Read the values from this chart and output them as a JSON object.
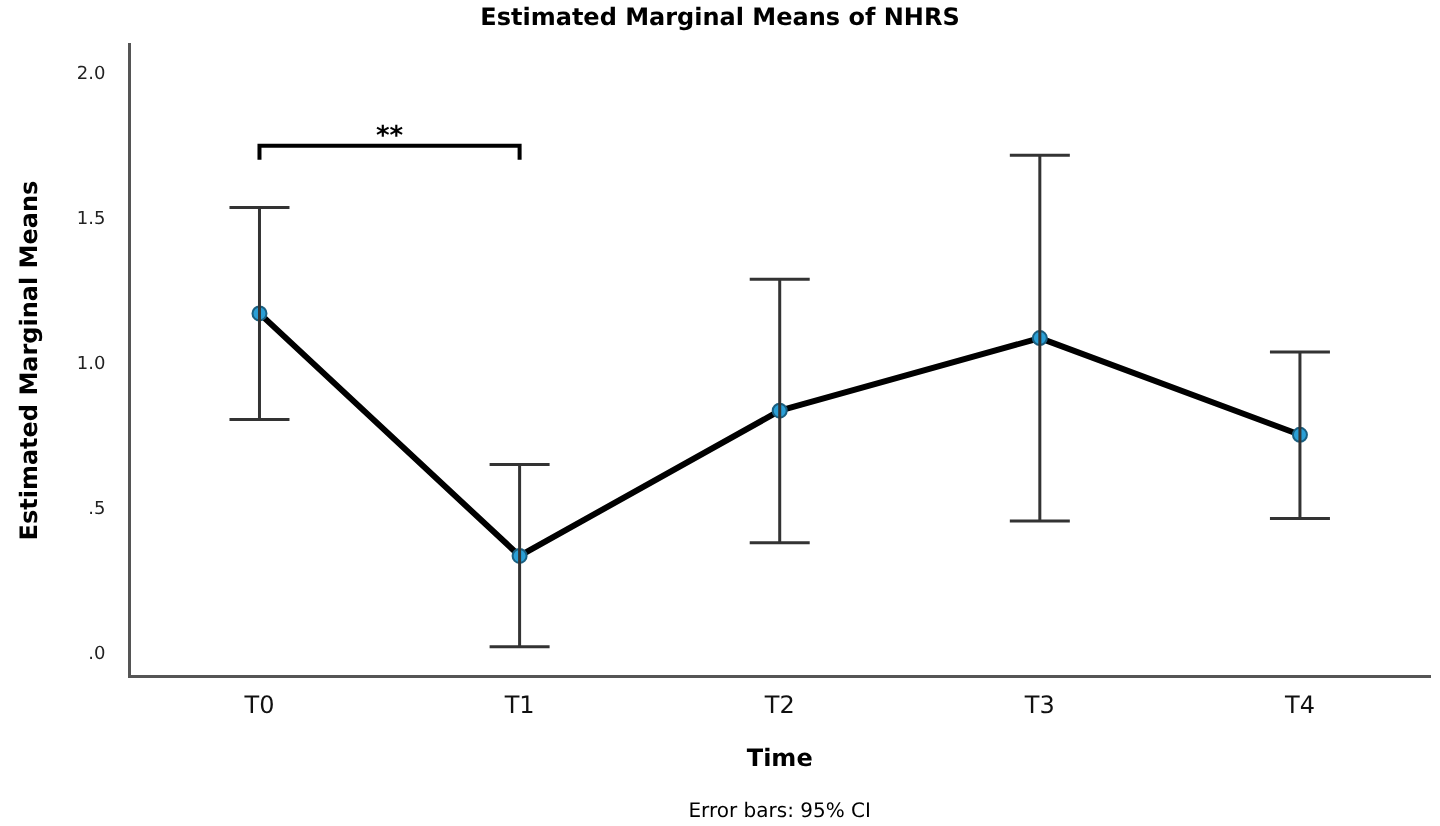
{
  "chart_data": {
    "type": "line",
    "title": "Estimated Marginal Means of NHRS",
    "xlabel": "Time",
    "ylabel": "Estimated Marginal Means",
    "categories": [
      "T0",
      "T1",
      "T2",
      "T3",
      "T4"
    ],
    "series": [
      {
        "color": "#000000",
        "values": [
          1.175,
          0.34,
          0.84,
          1.09,
          0.757
        ],
        "errors": [
          [
            0.81,
            1.54
          ],
          [
            0.027,
            0.655
          ],
          [
            0.385,
            1.293
          ],
          [
            0.46,
            1.72
          ],
          [
            0.469,
            1.042
          ]
        ]
      }
    ],
    "ylim": [
      -0.075,
      2.1
    ],
    "yticks": [
      {
        "value": 0,
        "label": ".0"
      },
      {
        "value": 0.5,
        "label": ".5"
      },
      {
        "value": 1,
        "label": "1.0"
      },
      {
        "value": 1.5,
        "label": "1.5"
      },
      {
        "value": 2,
        "label": "2.0"
      }
    ],
    "annotations": [
      "**",
      "Error bars: 95% CI"
    ],
    "grid": false,
    "legend": false,
    "marker": "circle",
    "line_style": "solid"
  }
}
